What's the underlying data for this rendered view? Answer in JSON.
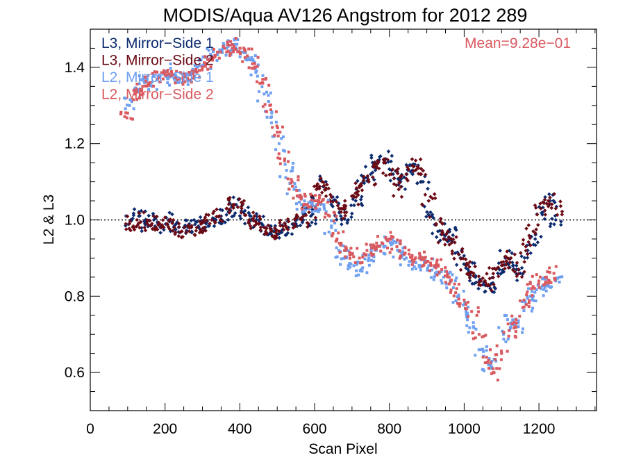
{
  "chart_data": {
    "type": "scatter",
    "title": "MODIS/Aqua AV126 Angstrom for 2012 289",
    "xlabel": "Scan Pixel",
    "ylabel": "L2 & L3",
    "xlim": [
      0,
      1354
    ],
    "ylim": [
      0.5,
      1.5
    ],
    "x_ticks": [
      0,
      200,
      400,
      600,
      800,
      1000,
      1200
    ],
    "y_ticks": [
      0.6,
      0.8,
      1.0,
      1.2,
      1.4
    ],
    "x_tick_labels": [
      "0",
      "200",
      "400",
      "600",
      "800",
      "1000",
      "1200"
    ],
    "y_tick_labels": [
      "0.6",
      "0.8",
      "1.0",
      "1.2",
      "1.4"
    ],
    "reference_line": 1.0,
    "annotation": "Mean=9.28e−01",
    "annotation_color": "#d9595f",
    "legend_placement": "top-left",
    "series": [
      {
        "name": "L3, Mirror−Side 1",
        "color": "#0c2a6e",
        "marker": "diamond",
        "x": [
          110,
          130,
          150,
          170,
          190,
          210,
          230,
          250,
          270,
          290,
          310,
          330,
          350,
          370,
          390,
          410,
          430,
          450,
          470,
          490,
          510,
          530,
          550,
          570,
          590,
          610,
          630,
          650,
          670,
          690,
          710,
          730,
          750,
          770,
          790,
          810,
          830,
          850,
          870,
          890,
          910,
          930,
          950,
          970,
          990,
          1010,
          1030,
          1050,
          1070,
          1090,
          1110,
          1130,
          1150,
          1170,
          1190,
          1210,
          1230,
          1245
        ],
        "y": [
          1.0,
          1.01,
          0.99,
          1.0,
          0.98,
          1.0,
          0.99,
          0.98,
          0.98,
          0.98,
          0.99,
          1.0,
          1.01,
          1.02,
          1.04,
          1.02,
          1.0,
          0.99,
          0.98,
          0.97,
          0.97,
          0.98,
          0.99,
          1.0,
          1.01,
          1.05,
          1.1,
          1.05,
          1.01,
          1.0,
          1.05,
          1.1,
          1.12,
          1.15,
          1.16,
          1.12,
          1.1,
          1.13,
          1.13,
          1.1,
          1.02,
          0.97,
          0.96,
          0.96,
          0.9,
          0.87,
          0.85,
          0.83,
          0.82,
          0.86,
          0.9,
          0.88,
          0.86,
          0.92,
          0.95,
          1.02,
          1.05,
          1.0
        ]
      },
      {
        "name": "L3, Mirror−Side 2",
        "color": "#6b0a14",
        "marker": "diamond",
        "x": [
          105,
          125,
          145,
          165,
          185,
          205,
          225,
          245,
          265,
          285,
          305,
          325,
          345,
          365,
          385,
          405,
          425,
          445,
          465,
          485,
          505,
          525,
          545,
          565,
          585,
          605,
          625,
          645,
          665,
          685,
          705,
          725,
          745,
          765,
          785,
          805,
          825,
          845,
          865,
          885,
          905,
          925,
          945,
          965,
          985,
          1005,
          1025,
          1045,
          1065,
          1085,
          1105,
          1125,
          1145,
          1165,
          1185,
          1205,
          1225,
          1245
        ],
        "y": [
          0.99,
          1.0,
          0.98,
          0.99,
          0.99,
          0.99,
          0.98,
          0.97,
          0.97,
          0.98,
          0.98,
          1.0,
          1.01,
          1.03,
          1.04,
          1.03,
          1.0,
          0.99,
          0.98,
          0.97,
          0.97,
          0.98,
          0.99,
          1.0,
          1.02,
          1.08,
          1.09,
          1.06,
          1.03,
          1.02,
          1.06,
          1.09,
          1.1,
          1.14,
          1.15,
          1.12,
          1.08,
          1.12,
          1.14,
          1.12,
          1.05,
          0.99,
          0.95,
          0.95,
          0.91,
          0.88,
          0.86,
          0.84,
          0.83,
          0.87,
          0.89,
          0.9,
          0.87,
          0.93,
          0.97,
          1.03,
          1.05,
          1.03
        ]
      },
      {
        "name": "L2, Mirror−Side 1",
        "color": "#6e9ff0",
        "marker": "square",
        "x": [
          105,
          125,
          145,
          165,
          185,
          205,
          225,
          245,
          265,
          285,
          305,
          325,
          345,
          365,
          385,
          405,
          425,
          445,
          465,
          485,
          505,
          525,
          545,
          565,
          585,
          605,
          625,
          645,
          665,
          685,
          705,
          725,
          745,
          765,
          785,
          805,
          825,
          845,
          865,
          885,
          905,
          925,
          945,
          965,
          985,
          1005,
          1025,
          1045,
          1065,
          1085,
          1105,
          1125,
          1145,
          1165,
          1185,
          1205,
          1225,
          1245
        ],
        "y": [
          1.3,
          1.34,
          1.36,
          1.35,
          1.38,
          1.39,
          1.37,
          1.36,
          1.38,
          1.4,
          1.41,
          1.43,
          1.44,
          1.45,
          1.46,
          1.44,
          1.42,
          1.39,
          1.33,
          1.27,
          1.2,
          1.13,
          1.08,
          1.04,
          1.03,
          1.04,
          1.04,
          0.98,
          0.92,
          0.9,
          0.88,
          0.87,
          0.9,
          0.92,
          0.93,
          0.94,
          0.92,
          0.9,
          0.89,
          0.88,
          0.88,
          0.86,
          0.85,
          0.84,
          0.8,
          0.76,
          0.72,
          0.66,
          0.62,
          0.63,
          0.7,
          0.73,
          0.72,
          0.78,
          0.8,
          0.82,
          0.83,
          0.84
        ]
      },
      {
        "name": "L2, Mirror−Side 2",
        "color": "#d9595f",
        "marker": "square",
        "x": [
          100,
          120,
          140,
          160,
          180,
          200,
          220,
          240,
          260,
          280,
          300,
          320,
          340,
          360,
          380,
          400,
          420,
          440,
          460,
          480,
          500,
          520,
          540,
          560,
          580,
          600,
          620,
          640,
          660,
          680,
          700,
          720,
          740,
          760,
          780,
          800,
          820,
          840,
          860,
          880,
          900,
          920,
          940,
          960,
          980,
          1000,
          1020,
          1040,
          1060,
          1080,
          1100,
          1120,
          1140,
          1160,
          1180,
          1200,
          1220,
          1240
        ],
        "y": [
          1.28,
          1.33,
          1.35,
          1.36,
          1.37,
          1.38,
          1.38,
          1.37,
          1.37,
          1.39,
          1.4,
          1.42,
          1.44,
          1.45,
          1.46,
          1.45,
          1.43,
          1.41,
          1.36,
          1.3,
          1.23,
          1.16,
          1.1,
          1.06,
          1.04,
          1.05,
          1.05,
          1.01,
          0.95,
          0.92,
          0.91,
          0.9,
          0.92,
          0.93,
          0.94,
          0.95,
          0.93,
          0.91,
          0.9,
          0.9,
          0.89,
          0.88,
          0.87,
          0.85,
          0.82,
          0.79,
          0.76,
          0.7,
          0.64,
          0.6,
          0.65,
          0.71,
          0.73,
          0.79,
          0.82,
          0.84,
          0.85,
          0.86
        ]
      }
    ]
  }
}
